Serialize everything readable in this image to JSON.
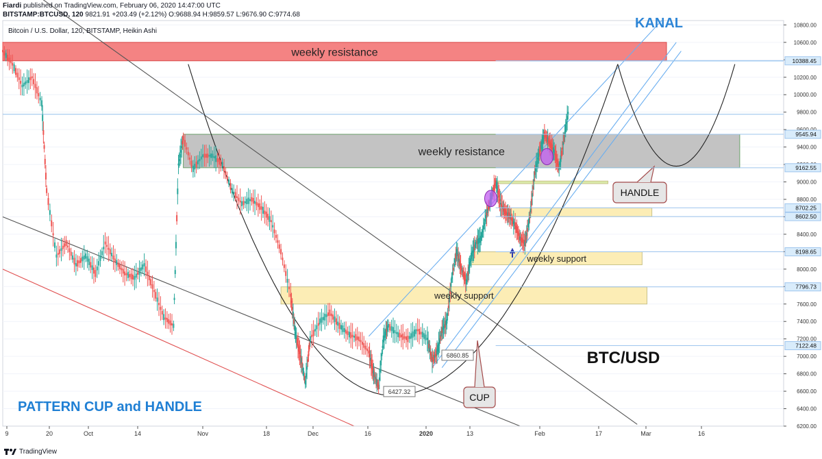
{
  "header": {
    "author": "Fiardi",
    "published_text": "published on TradingView.com, February 06, 2020 14:47:00 UTC",
    "symbol_line": "BITSTAMP:BTCUSD, 120",
    "last_price": "9821.91",
    "change": "+203.49 (+2.12%)",
    "ohlc": "O:9688.94 H:9859.57 L:9676.90 C:9774.68"
  },
  "chart_data": {
    "type": "candlestick",
    "title": "Bitcoin / U.S. Dollar, 120, BITSTAMP, Heikin Ashi",
    "subtitle": "BTC/USD",
    "pattern_label": "PATTERN CUP and HANDLE",
    "y_axis": {
      "range": [
        6200,
        10850
      ],
      "ticks": [
        "10800.00",
        "10600.00",
        "10400.00",
        "10200.00",
        "10000.00",
        "9800.00",
        "9600.00",
        "9400.00",
        "9200.00",
        "9000.00",
        "8800.00",
        "8600.00",
        "8400.00",
        "8200.00",
        "8000.00",
        "7800.00",
        "7600.00",
        "7400.00",
        "7200.00",
        "7000.00",
        "6800.00",
        "6600.00",
        "6400.00",
        "6200.00"
      ],
      "price_tags": [
        "10388.45",
        "9545.94",
        "9162.55",
        "8702.25",
        "8602.50",
        "8198.65",
        "7796.73",
        "7122.48"
      ]
    },
    "x_axis": {
      "ticks": [
        "9",
        "20",
        "Oct",
        "14",
        "Nov",
        "18",
        "Dec",
        "16",
        "2020",
        "13",
        "Feb",
        "17",
        "Mar",
        "16"
      ]
    },
    "price_path": [
      {
        "x": 0,
        "y": 10500
      },
      {
        "x": 2,
        "y": 10350
      },
      {
        "x": 4,
        "y": 10100
      },
      {
        "x": 6,
        "y": 10200
      },
      {
        "x": 8,
        "y": 9900
      },
      {
        "x": 9,
        "y": 8900
      },
      {
        "x": 11,
        "y": 8150
      },
      {
        "x": 13,
        "y": 8300
      },
      {
        "x": 15,
        "y": 8050
      },
      {
        "x": 17,
        "y": 8150
      },
      {
        "x": 19,
        "y": 7950
      },
      {
        "x": 21,
        "y": 8300
      },
      {
        "x": 23,
        "y": 8100
      },
      {
        "x": 25,
        "y": 7950
      },
      {
        "x": 27,
        "y": 7900
      },
      {
        "x": 29,
        "y": 8050
      },
      {
        "x": 31,
        "y": 7750
      },
      {
        "x": 33,
        "y": 7450
      },
      {
        "x": 35,
        "y": 7350
      },
      {
        "x": 36,
        "y": 9200
      },
      {
        "x": 37,
        "y": 9500
      },
      {
        "x": 39,
        "y": 9150
      },
      {
        "x": 41,
        "y": 9300
      },
      {
        "x": 43,
        "y": 9300
      },
      {
        "x": 45,
        "y": 9200
      },
      {
        "x": 47,
        "y": 8900
      },
      {
        "x": 49,
        "y": 8750
      },
      {
        "x": 51,
        "y": 8800
      },
      {
        "x": 53,
        "y": 8700
      },
      {
        "x": 55,
        "y": 8550
      },
      {
        "x": 57,
        "y": 8200
      },
      {
        "x": 59,
        "y": 7700
      },
      {
        "x": 60,
        "y": 7250
      },
      {
        "x": 61,
        "y": 7000
      },
      {
        "x": 62,
        "y": 6700
      },
      {
        "x": 63,
        "y": 7200
      },
      {
        "x": 65,
        "y": 7400
      },
      {
        "x": 67,
        "y": 7500
      },
      {
        "x": 69,
        "y": 7350
      },
      {
        "x": 71,
        "y": 7250
      },
      {
        "x": 73,
        "y": 7200
      },
      {
        "x": 75,
        "y": 7050
      },
      {
        "x": 76,
        "y": 6800
      },
      {
        "x": 77,
        "y": 6650
      },
      {
        "x": 78,
        "y": 7200
      },
      {
        "x": 79,
        "y": 7350
      },
      {
        "x": 81,
        "y": 7250
      },
      {
        "x": 83,
        "y": 7200
      },
      {
        "x": 85,
        "y": 7300
      },
      {
        "x": 87,
        "y": 7200
      },
      {
        "x": 88,
        "y": 6950
      },
      {
        "x": 89,
        "y": 7050
      },
      {
        "x": 90,
        "y": 7300
      },
      {
        "x": 91,
        "y": 7400
      },
      {
        "x": 92,
        "y": 7900
      },
      {
        "x": 93,
        "y": 8200
      },
      {
        "x": 94,
        "y": 8000
      },
      {
        "x": 95,
        "y": 7850
      },
      {
        "x": 96,
        "y": 8150
      },
      {
        "x": 97,
        "y": 8300
      },
      {
        "x": 98,
        "y": 8350
      },
      {
        "x": 99,
        "y": 8600
      },
      {
        "x": 100,
        "y": 8800
      },
      {
        "x": 101,
        "y": 9000
      },
      {
        "x": 102,
        "y": 8750
      },
      {
        "x": 103,
        "y": 8650
      },
      {
        "x": 104,
        "y": 8600
      },
      {
        "x": 105,
        "y": 8500
      },
      {
        "x": 106,
        "y": 8350
      },
      {
        "x": 107,
        "y": 8300
      },
      {
        "x": 108,
        "y": 8600
      },
      {
        "x": 109,
        "y": 9100
      },
      {
        "x": 110,
        "y": 9350
      },
      {
        "x": 111,
        "y": 9550
      },
      {
        "x": 112,
        "y": 9450
      },
      {
        "x": 113,
        "y": 9350
      },
      {
        "x": 114,
        "y": 9150
      },
      {
        "x": 115,
        "y": 9500
      },
      {
        "x": 116,
        "y": 9850
      }
    ],
    "zones": [
      {
        "label": "weekly resistance",
        "top": 10600,
        "bottom": 10388.45,
        "x0": 0,
        "x1": 136,
        "color": "#f26d6d"
      },
      {
        "label": "weekly resistance",
        "top": 9545.94,
        "bottom": 9162.55,
        "x0": 37,
        "x1": 151,
        "color": "#b8b8b8"
      },
      {
        "label": "",
        "top": 9010,
        "bottom": 8980,
        "x0": 101,
        "x1": 124,
        "color": "#d4e89a"
      },
      {
        "label": "",
        "top": 8702.25,
        "bottom": 8602.5,
        "x0": 103,
        "x1": 133,
        "color": "#fbeaa8"
      },
      {
        "label": "weekly support",
        "top": 8198.65,
        "bottom": 8050,
        "x0": 96,
        "x1": 131,
        "color": "#fbeaa8"
      },
      {
        "label": "weekly support",
        "top": 7796.73,
        "bottom": 7600,
        "x0": 57,
        "x1": 132,
        "color": "#fbeaa8"
      }
    ],
    "annotations": [
      {
        "text": "KANAL",
        "x": 132,
        "y": 10850
      },
      {
        "text": "HANDLE",
        "x": 128,
        "y": 8900
      },
      {
        "text": "CUP",
        "x": 97,
        "y": 6600
      },
      {
        "text": "6427.32",
        "x": 80,
        "y": 6580
      },
      {
        "text": "6860.85",
        "x": 95,
        "y": 7010
      }
    ],
    "grid": true,
    "legend": "none"
  },
  "footer": {
    "brand": "TradingView"
  }
}
